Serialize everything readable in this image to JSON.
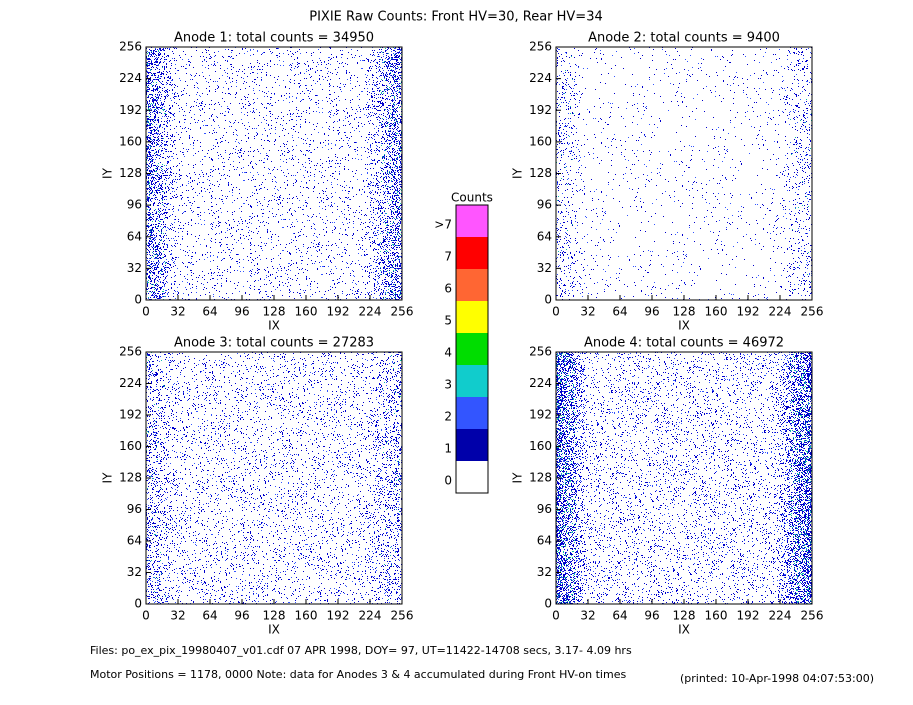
{
  "chart_data": [
    {
      "type": "heatmap",
      "title": "Anode 1: total counts = 34950",
      "xlabel": "IX",
      "ylabel": "IY",
      "xlim": [
        0,
        256
      ],
      "ylim": [
        0,
        256
      ],
      "xticks": [
        0,
        32,
        64,
        96,
        128,
        160,
        192,
        224,
        256
      ],
      "yticks": [
        0,
        32,
        64,
        96,
        128,
        160,
        192,
        224,
        256
      ]
    },
    {
      "type": "heatmap",
      "title": "Anode 2: total counts = 9400",
      "xlabel": "IX",
      "ylabel": "IY",
      "xlim": [
        0,
        256
      ],
      "ylim": [
        0,
        256
      ],
      "xticks": [
        0,
        32,
        64,
        96,
        128,
        160,
        192,
        224,
        256
      ],
      "yticks": [
        0,
        32,
        64,
        96,
        128,
        160,
        192,
        224,
        256
      ]
    },
    {
      "type": "heatmap",
      "title": "Anode 3: total counts = 27283",
      "xlabel": "IX",
      "ylabel": "IY",
      "xlim": [
        0,
        256
      ],
      "ylim": [
        0,
        256
      ],
      "xticks": [
        0,
        32,
        64,
        96,
        128,
        160,
        192,
        224,
        256
      ],
      "yticks": [
        0,
        32,
        64,
        96,
        128,
        160,
        192,
        224,
        256
      ]
    },
    {
      "type": "heatmap",
      "title": "Anode 4: total counts = 46972",
      "xlabel": "IX",
      "ylabel": "IY",
      "xlim": [
        0,
        256
      ],
      "ylim": [
        0,
        256
      ],
      "xticks": [
        0,
        32,
        64,
        96,
        128,
        160,
        192,
        224,
        256
      ],
      "yticks": [
        0,
        32,
        64,
        96,
        128,
        160,
        192,
        224,
        256
      ]
    }
  ],
  "header": {
    "title": "PIXIE Raw Counts:  Front HV=30, Rear HV=34"
  },
  "colorbar": {
    "title": "Counts",
    "levels": [
      ">7",
      "7",
      "6",
      "5",
      "4",
      "3",
      "2",
      "1",
      "0"
    ],
    "colors": [
      "#ff55ff",
      "#ff0000",
      "#ff6633",
      "#ffff00",
      "#00dd00",
      "#11cccc",
      "#3355ff",
      "#0000aa",
      "#ffffff"
    ]
  },
  "footer": {
    "files": "Files: po_ex_pix_19980407_v01.cdf    07 APR 1998, DOY= 97, UT=11422-14708 secs,  3.17- 4.09 hrs",
    "motor": "Motor Positions = 1178, 0000   Note: data for Anodes 3 & 4 accumulated during Front HV-on times",
    "printed": "(printed: 10-Apr-1998 04:07:53:00)"
  }
}
